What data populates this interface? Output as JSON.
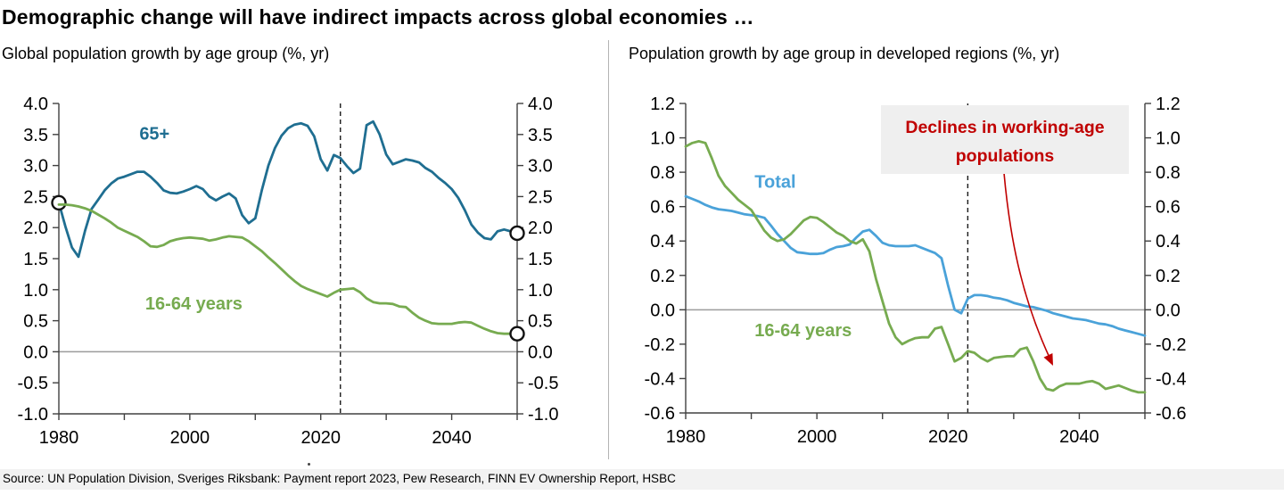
{
  "page": {
    "title": "Demographic change will have indirect impacts across global economies …",
    "source": "Source: UN Population Division, Sveriges Riksbank: Payment report 2023, Pew Research, FINN EV Ownership Report, HSBC"
  },
  "chart_data": [
    {
      "type": "line",
      "title": "Global population growth by age group (%, yr)",
      "xlabel": "",
      "ylabel": "",
      "xlim": [
        1980,
        2050
      ],
      "ylim": [
        -1.0,
        4.0
      ],
      "grid": false,
      "zero_line": true,
      "forecast_divider_year": 2023,
      "x_ticks": [
        1980,
        1990,
        2000,
        2010,
        2020,
        2030,
        2040,
        2050
      ],
      "x_labels": [
        {
          "year": 1980,
          "label": "1980"
        },
        {
          "year": 2000,
          "label": "2000"
        },
        {
          "year": 2020,
          "label": "2020"
        },
        {
          "year": 2040,
          "label": "2040"
        }
      ],
      "y_ticks": [
        {
          "value": 4.0,
          "label": "4.0"
        },
        {
          "value": 3.5,
          "label": "3.5"
        },
        {
          "value": 3.0,
          "label": "3.0"
        },
        {
          "value": 2.5,
          "label": "2.5"
        },
        {
          "value": 2.0,
          "label": "2.0"
        },
        {
          "value": 1.5,
          "label": "1.5"
        },
        {
          "value": 1.0,
          "label": "1.0"
        },
        {
          "value": 0.5,
          "label": "0.5"
        },
        {
          "value": 0.0,
          "label": "0.0"
        },
        {
          "value": -0.5,
          "label": "-0.5"
        },
        {
          "value": -1.0,
          "label": "-1.0"
        }
      ],
      "series": [
        {
          "name": "65+",
          "color": "#1f6e91",
          "start_year": 1980,
          "values": [
            2.4,
            2.02,
            1.68,
            1.53,
            1.95,
            2.3,
            2.45,
            2.6,
            2.71,
            2.79,
            2.82,
            2.86,
            2.9,
            2.9,
            2.82,
            2.72,
            2.6,
            2.56,
            2.55,
            2.58,
            2.62,
            2.67,
            2.62,
            2.5,
            2.44,
            2.5,
            2.55,
            2.47,
            2.2,
            2.07,
            2.15,
            2.6,
            3.0,
            3.28,
            3.48,
            3.6,
            3.66,
            3.68,
            3.64,
            3.47,
            3.1,
            2.92,
            3.17,
            3.12,
            2.99,
            2.88,
            2.95,
            3.65,
            3.71,
            3.5,
            3.18,
            3.02,
            3.06,
            3.1,
            3.08,
            3.05,
            2.96,
            2.9,
            2.8,
            2.72,
            2.62,
            2.48,
            2.28,
            2.05,
            1.92,
            1.83,
            1.81,
            1.94,
            1.97,
            1.94,
            1.91
          ],
          "label": {
            "text": "65+",
            "year": 1992.3,
            "value": 3.42
          },
          "markers": [
            {
              "year": 1980,
              "value": 2.4
            },
            {
              "year": 2050,
              "value": 1.91
            }
          ]
        },
        {
          "name": "16-64 years",
          "color": "#77ab50",
          "start_year": 1980,
          "values": [
            2.37,
            2.37,
            2.36,
            2.34,
            2.31,
            2.27,
            2.21,
            2.15,
            2.08,
            2.0,
            1.95,
            1.9,
            1.85,
            1.78,
            1.7,
            1.69,
            1.72,
            1.78,
            1.81,
            1.83,
            1.84,
            1.83,
            1.82,
            1.79,
            1.81,
            1.84,
            1.86,
            1.85,
            1.84,
            1.78,
            1.7,
            1.62,
            1.52,
            1.43,
            1.33,
            1.23,
            1.14,
            1.06,
            1.01,
            0.97,
            0.93,
            0.89,
            0.95,
            1.0,
            1.01,
            1.02,
            0.96,
            0.86,
            0.8,
            0.78,
            0.78,
            0.77,
            0.73,
            0.72,
            0.63,
            0.55,
            0.5,
            0.46,
            0.45,
            0.45,
            0.45,
            0.47,
            0.48,
            0.47,
            0.42,
            0.37,
            0.33,
            0.3,
            0.29,
            0.29,
            0.29
          ],
          "label": {
            "text": "16-64 years",
            "year": 1993.2,
            "value": 0.68
          },
          "markers": [
            {
              "year": 2050,
              "value": 0.29
            }
          ]
        }
      ]
    },
    {
      "type": "line",
      "title": "Population growth by age group in developed regions (%, yr)",
      "xlabel": "",
      "ylabel": "",
      "xlim": [
        1980,
        2050
      ],
      "ylim": [
        -0.6,
        1.2
      ],
      "grid": false,
      "zero_line": true,
      "forecast_divider_year": 2023,
      "x_ticks": [
        1980,
        1990,
        2000,
        2010,
        2020,
        2030,
        2040,
        2050
      ],
      "x_labels": [
        {
          "year": 1980,
          "label": "1980"
        },
        {
          "year": 2000,
          "label": "2000"
        },
        {
          "year": 2020,
          "label": "2020"
        },
        {
          "year": 2040,
          "label": "2040"
        }
      ],
      "y_ticks": [
        {
          "value": 1.2,
          "label": "1.2"
        },
        {
          "value": 1.0,
          "label": "1.0"
        },
        {
          "value": 0.8,
          "label": "0.8"
        },
        {
          "value": 0.6,
          "label": "0.6"
        },
        {
          "value": 0.4,
          "label": "0.4"
        },
        {
          "value": 0.2,
          "label": "0.2"
        },
        {
          "value": 0.0,
          "label": "0.0"
        },
        {
          "value": -0.2,
          "label": "-0.2"
        },
        {
          "value": -0.4,
          "label": "-0.4"
        },
        {
          "value": -0.6,
          "label": "-0.6"
        }
      ],
      "series": [
        {
          "name": "Total",
          "color": "#4aa2d9",
          "start_year": 1980,
          "values": [
            0.66,
            0.645,
            0.63,
            0.61,
            0.595,
            0.585,
            0.58,
            0.575,
            0.565,
            0.555,
            0.55,
            0.545,
            0.535,
            0.49,
            0.44,
            0.4,
            0.36,
            0.335,
            0.33,
            0.325,
            0.325,
            0.33,
            0.35,
            0.365,
            0.37,
            0.38,
            0.42,
            0.455,
            0.465,
            0.43,
            0.39,
            0.375,
            0.37,
            0.37,
            0.37,
            0.375,
            0.36,
            0.345,
            0.33,
            0.3,
            0.14,
            0.0,
            -0.02,
            0.065,
            0.085,
            0.085,
            0.08,
            0.07,
            0.065,
            0.055,
            0.04,
            0.03,
            0.02,
            0.015,
            0.005,
            -0.005,
            -0.02,
            -0.03,
            -0.04,
            -0.05,
            -0.055,
            -0.06,
            -0.07,
            -0.08,
            -0.085,
            -0.095,
            -0.11,
            -0.12,
            -0.13,
            -0.14,
            -0.15
          ],
          "label": {
            "text": "Total",
            "year": 1990.5,
            "value": 0.71
          },
          "markers": []
        },
        {
          "name": "16-64 years",
          "color": "#77ab50",
          "start_year": 1980,
          "values": [
            0.95,
            0.97,
            0.98,
            0.97,
            0.88,
            0.78,
            0.72,
            0.68,
            0.64,
            0.61,
            0.58,
            0.52,
            0.46,
            0.42,
            0.4,
            0.41,
            0.44,
            0.48,
            0.52,
            0.54,
            0.535,
            0.51,
            0.48,
            0.45,
            0.43,
            0.4,
            0.385,
            0.41,
            0.34,
            0.18,
            0.05,
            -0.08,
            -0.16,
            -0.2,
            -0.18,
            -0.165,
            -0.16,
            -0.16,
            -0.11,
            -0.1,
            -0.2,
            -0.3,
            -0.28,
            -0.24,
            -0.25,
            -0.28,
            -0.3,
            -0.28,
            -0.275,
            -0.27,
            -0.27,
            -0.23,
            -0.22,
            -0.3,
            -0.4,
            -0.46,
            -0.47,
            -0.445,
            -0.43,
            -0.43,
            -0.43,
            -0.42,
            -0.415,
            -0.43,
            -0.46,
            -0.45,
            -0.44,
            -0.455,
            -0.47,
            -0.48,
            -0.48
          ],
          "label": {
            "text": "16-64 years",
            "year": 1990.5,
            "value": -0.155
          },
          "markers": []
        }
      ],
      "annotation": {
        "line1": "Declines in working-age",
        "line2": "populations",
        "color": "#c00000",
        "bg": "#efefef"
      }
    }
  ]
}
